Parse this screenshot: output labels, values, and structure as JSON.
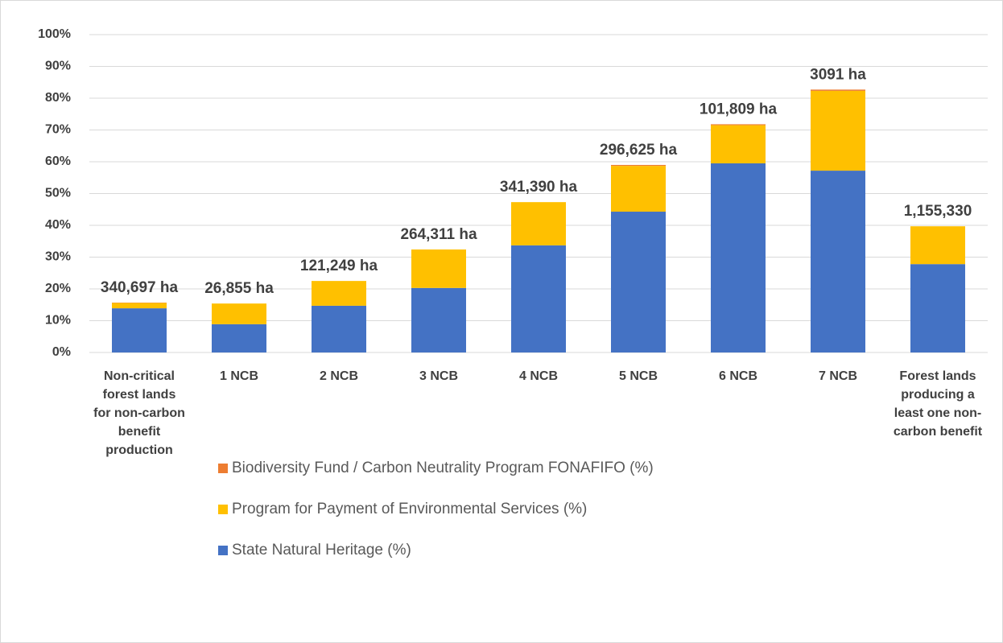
{
  "chart_data": {
    "type": "stacked_bar",
    "categories": [
      "Non-critical forest lands for non-carbon benefit production",
      "1 NCB",
      "2 NCB",
      "3 NCB",
      "4 NCB",
      "5 NCB",
      "6 NCB",
      "7 NCB",
      "Forest lands producing a least one non-carbon benefit"
    ],
    "series": [
      {
        "name": "State Natural Heritage (%)",
        "color": "#4472c4",
        "values": [
          13.9,
          8.9,
          14.7,
          20.3,
          33.7,
          44.3,
          59.5,
          57.2,
          27.8
        ]
      },
      {
        "name": "Program for Payment of Environmental Services (%)",
        "color": "#ffc000",
        "values": [
          1.7,
          6.5,
          7.8,
          12.1,
          13.6,
          14.4,
          12.0,
          25.1,
          11.9
        ]
      },
      {
        "name": "Biodiversity Fund / Carbon Neutrality Program FONAFIFO (%)",
        "color": "#ed7d31",
        "values": [
          0.1,
          0,
          0,
          0,
          0,
          0.3,
          0.3,
          0.4,
          0
        ]
      }
    ],
    "annotations": [
      "340,697 ha",
      "26,855 ha",
      "121,249 ha",
      "264,311 ha",
      "341,390 ha",
      "296,625 ha",
      "101,809 ha",
      "3091 ha",
      "1,155,330"
    ],
    "ylim": [
      0,
      100
    ],
    "yticks": [
      {
        "value": 0,
        "label": "0%"
      },
      {
        "value": 10,
        "label": "10%"
      },
      {
        "value": 20,
        "label": "20%"
      },
      {
        "value": 30,
        "label": "30%"
      },
      {
        "value": 40,
        "label": "40%"
      },
      {
        "value": 50,
        "label": "50%"
      },
      {
        "value": 60,
        "label": "60%"
      },
      {
        "value": 70,
        "label": "70%"
      },
      {
        "value": 80,
        "label": "80%"
      },
      {
        "value": 90,
        "label": "90%"
      },
      {
        "value": 100,
        "label": "100%"
      }
    ],
    "grid": true,
    "legend": "bottom"
  }
}
